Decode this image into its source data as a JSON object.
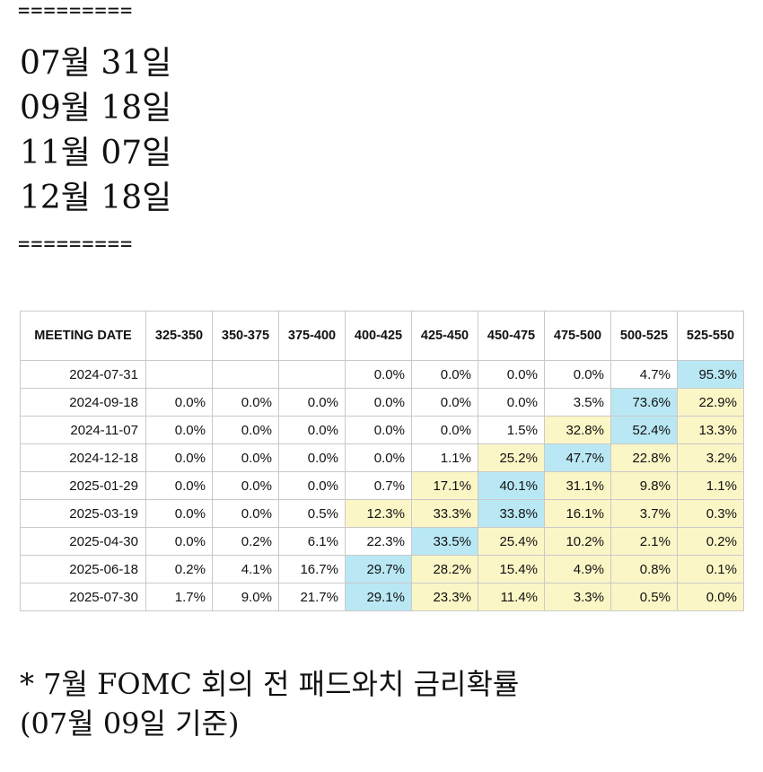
{
  "separator": "=========",
  "dates": [
    "07월 31일",
    "09월 18일",
    "11월 07일",
    "12월 18일"
  ],
  "table": {
    "headers": [
      "MEETING DATE",
      "325-350",
      "350-375",
      "375-400",
      "400-425",
      "425-450",
      "450-475",
      "475-500",
      "500-525",
      "525-550"
    ],
    "rows": [
      {
        "date": "2024-07-31",
        "cells": [
          "",
          "",
          "",
          "0.0%",
          "0.0%",
          "0.0%",
          "0.0%",
          "4.7%",
          "95.3%"
        ],
        "hl": [
          "",
          "",
          "",
          "",
          "",
          "",
          "",
          "",
          "blue"
        ]
      },
      {
        "date": "2024-09-18",
        "cells": [
          "0.0%",
          "0.0%",
          "0.0%",
          "0.0%",
          "0.0%",
          "0.0%",
          "3.5%",
          "73.6%",
          "22.9%"
        ],
        "hl": [
          "",
          "",
          "",
          "",
          "",
          "",
          "",
          "blue",
          "yellow"
        ]
      },
      {
        "date": "2024-11-07",
        "cells": [
          "0.0%",
          "0.0%",
          "0.0%",
          "0.0%",
          "0.0%",
          "1.5%",
          "32.8%",
          "52.4%",
          "13.3%"
        ],
        "hl": [
          "",
          "",
          "",
          "",
          "",
          "",
          "yellow",
          "blue",
          "yellow"
        ]
      },
      {
        "date": "2024-12-18",
        "cells": [
          "0.0%",
          "0.0%",
          "0.0%",
          "0.0%",
          "1.1%",
          "25.2%",
          "47.7%",
          "22.8%",
          "3.2%"
        ],
        "hl": [
          "",
          "",
          "",
          "",
          "",
          "yellow",
          "blue",
          "yellow",
          "yellow"
        ]
      },
      {
        "date": "2025-01-29",
        "cells": [
          "0.0%",
          "0.0%",
          "0.0%",
          "0.7%",
          "17.1%",
          "40.1%",
          "31.1%",
          "9.8%",
          "1.1%"
        ],
        "hl": [
          "",
          "",
          "",
          "",
          "yellow",
          "blue",
          "yellow",
          "yellow",
          "yellow"
        ]
      },
      {
        "date": "2025-03-19",
        "cells": [
          "0.0%",
          "0.0%",
          "0.5%",
          "12.3%",
          "33.3%",
          "33.8%",
          "16.1%",
          "3.7%",
          "0.3%"
        ],
        "hl": [
          "",
          "",
          "",
          "yellow",
          "yellow",
          "blue",
          "yellow",
          "yellow",
          "yellow"
        ]
      },
      {
        "date": "2025-04-30",
        "cells": [
          "0.0%",
          "0.2%",
          "6.1%",
          "22.3%",
          "33.5%",
          "25.4%",
          "10.2%",
          "2.1%",
          "0.2%"
        ],
        "hl": [
          "",
          "",
          "",
          "",
          "blue",
          "yellow",
          "yellow",
          "yellow",
          "yellow"
        ]
      },
      {
        "date": "2025-06-18",
        "cells": [
          "0.2%",
          "4.1%",
          "16.7%",
          "29.7%",
          "28.2%",
          "15.4%",
          "4.9%",
          "0.8%",
          "0.1%"
        ],
        "hl": [
          "",
          "",
          "",
          "blue",
          "yellow",
          "yellow",
          "yellow",
          "yellow",
          "yellow"
        ]
      },
      {
        "date": "2025-07-30",
        "cells": [
          "1.7%",
          "9.0%",
          "21.7%",
          "29.1%",
          "23.3%",
          "11.4%",
          "3.3%",
          "0.5%",
          "0.0%"
        ],
        "hl": [
          "",
          "",
          "",
          "blue",
          "yellow",
          "yellow",
          "yellow",
          "yellow",
          "yellow"
        ]
      }
    ]
  },
  "caption": {
    "line1": "* 7월 FOMC 회의 전 패드와치 금리확률",
    "line2": "(07월 09일 기준)"
  },
  "colors": {
    "highlight_blue": "#b9e8f4",
    "highlight_yellow": "#fbf6c6"
  }
}
